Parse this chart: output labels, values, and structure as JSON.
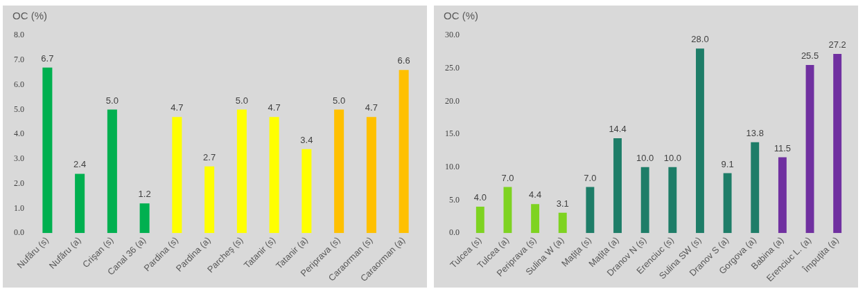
{
  "chart_data": [
    {
      "type": "bar",
      "ylabel": "OC (%)",
      "categories": [
        "Nufăru (s)",
        "Nufăru (a)",
        "Crişan (s)",
        "Canal 36 (a)",
        "Pardina (s)",
        "Pardina (a)",
        "Parcheş (s)",
        "Tatanir (s)",
        "Tatanir (a)",
        "Periprava (s)",
        "Caraorman (s)",
        "Caraorman (a)"
      ],
      "values": [
        6.7,
        2.4,
        5.0,
        1.2,
        4.7,
        2.7,
        5.0,
        4.7,
        3.4,
        5.0,
        4.7,
        6.6
      ],
      "value_labels": [
        "6.7",
        "2.4",
        "5.0",
        "1.2",
        "4.7",
        "2.7",
        "5.0",
        "4.7",
        "3.4",
        "5.0",
        "4.7",
        "6.6"
      ],
      "colors": [
        "#00b050",
        "#00b050",
        "#00b050",
        "#00b050",
        "#ffff00",
        "#ffff00",
        "#ffff00",
        "#ffff00",
        "#ffff00",
        "#ffc000",
        "#ffc000",
        "#ffc000"
      ],
      "ylim": [
        0,
        8
      ],
      "yticks": [
        {
          "value": 0,
          "label": "0.0"
        },
        {
          "value": 1,
          "label": "1.0"
        },
        {
          "value": 2,
          "label": "2.0"
        },
        {
          "value": 3,
          "label": "3.0"
        },
        {
          "value": 4,
          "label": "4.0"
        },
        {
          "value": 5,
          "label": "5.0"
        },
        {
          "value": 6,
          "label": "6.0"
        },
        {
          "value": 7,
          "label": "7.0"
        },
        {
          "value": 8,
          "label": "8.0"
        }
      ]
    },
    {
      "type": "bar",
      "ylabel": "OC (%)",
      "categories": [
        "Tulcea (s)",
        "Tulcea (a)",
        "Periprava (s)",
        "Sulina W (a)",
        "Mațița (s)",
        "Mațița (a)",
        "Dranov N (s)",
        "Erenciuc (s)",
        "Sulina SW (s)",
        "Dranov S (a)",
        "Gorgova (a)",
        "Babina (a)",
        "Erenciuc L. (a)",
        "Împuțita (a)"
      ],
      "values": [
        4.0,
        7.0,
        4.4,
        3.1,
        7.0,
        14.4,
        10.0,
        10.0,
        28.0,
        9.1,
        13.8,
        11.5,
        25.5,
        27.2
      ],
      "value_labels": [
        "4.0",
        "7.0",
        "4.4",
        "3.1",
        "7.0",
        "14.4",
        "10.0",
        "10.0",
        "28.0",
        "9.1",
        "13.8",
        "11.5",
        "25.5",
        "27.2"
      ],
      "colors": [
        "#7ed321",
        "#7ed321",
        "#7ed321",
        "#7ed321",
        "#1e7d68",
        "#1e7d68",
        "#1e7d68",
        "#1e7d68",
        "#1e7d68",
        "#1e7d68",
        "#1e7d68",
        "#7030a0",
        "#7030a0",
        "#7030a0"
      ],
      "ylim": [
        0,
        30
      ],
      "yticks": [
        {
          "value": 0,
          "label": "0.0"
        },
        {
          "value": 5,
          "label": "5.0"
        },
        {
          "value": 10,
          "label": "10.0"
        },
        {
          "value": 15,
          "label": "15.0"
        },
        {
          "value": 20,
          "label": "20.0"
        },
        {
          "value": 25,
          "label": "25.0"
        },
        {
          "value": 30,
          "label": "30.0"
        }
      ]
    }
  ]
}
